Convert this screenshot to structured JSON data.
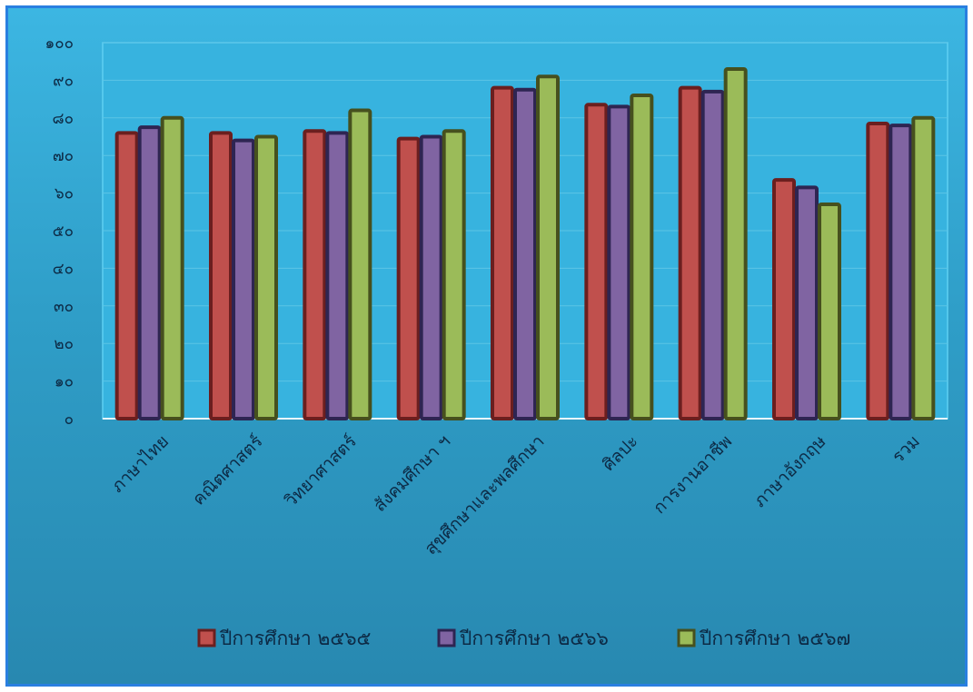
{
  "chart_data": {
    "type": "bar",
    "title": "",
    "xlabel": "",
    "ylabel": "",
    "ylim": [
      0,
      100
    ],
    "y_ticks": [
      0,
      10,
      20,
      30,
      40,
      50,
      60,
      70,
      80,
      90,
      100
    ],
    "y_tick_labels": [
      "๐",
      "๑๐",
      "๒๐",
      "๓๐",
      "๔๐",
      "๕๐",
      "๖๐",
      "๗๐",
      "๘๐",
      "๙๐",
      "๑๐๐"
    ],
    "grid": true,
    "legend_position": "bottom",
    "categories": [
      "ภาษาไทย",
      "คณิตศาสตร์",
      "วิทยาศาสตร์",
      "สังคมศึกษา ฯ",
      "สุขศึกษาและพลศึกษา",
      "ศิลปะ",
      "การงานอาชีพ",
      "ภาษาอังกฤษ",
      "รวม"
    ],
    "series": [
      {
        "name": "ปีการศึกษา ๒๕๖๕",
        "color": "#c0504d",
        "border": "#6b1f1f",
        "values": [
          76,
          76,
          76.5,
          74.5,
          88,
          83.5,
          88,
          63.5,
          78.5
        ]
      },
      {
        "name": "ปีการศึกษา ๒๕๖๖",
        "color": "#8064a2",
        "border": "#2e2552",
        "values": [
          77.5,
          74,
          76,
          75,
          87.5,
          83,
          87,
          61.5,
          78
        ]
      },
      {
        "name": "ปีการศึกษา ๒๕๖๗",
        "color": "#9bbb59",
        "border": "#46501e",
        "values": [
          80,
          75,
          82,
          76.5,
          91,
          86,
          93,
          57,
          80
        ]
      }
    ]
  }
}
